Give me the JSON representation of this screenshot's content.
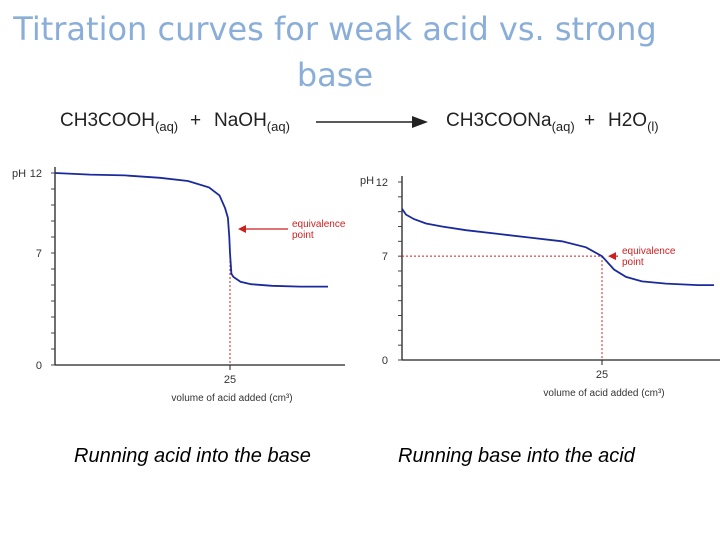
{
  "title": "Titration curves for weak acid vs. strong base",
  "equation": {
    "reactant1": {
      "main": "CH3COOH",
      "state": "(aq)"
    },
    "plus1": "+",
    "reactant2": {
      "main": "NaOH",
      "state": "(aq)"
    },
    "product1": {
      "main": "CH3COONa",
      "state": "(aq)"
    },
    "plus2": "+",
    "product2": {
      "main": "H2O",
      "state": "(l)"
    }
  },
  "colors": {
    "curve": "#1a2a9c",
    "marker": "#cc1f1f",
    "title": "#8aaed8"
  },
  "chart_data": [
    {
      "type": "line",
      "ylabel": "pH",
      "xlabel": "volume of acid added (cm³)",
      "xlim": [
        0,
        45
      ],
      "ylim": [
        0,
        12
      ],
      "yticks": [
        {
          "value": 0,
          "label": "0"
        },
        {
          "value": 7,
          "label": "7"
        },
        {
          "value": 12,
          "label": "12"
        }
      ],
      "xticks": [
        {
          "value": 25,
          "label": "25"
        }
      ],
      "x": [
        0,
        5,
        10,
        15,
        19,
        22,
        23.5,
        24.3,
        24.7,
        24.9,
        25,
        25.2,
        25.5,
        26.5,
        28,
        31,
        35,
        39
      ],
      "y": [
        12.0,
        11.9,
        11.85,
        11.7,
        11.5,
        11.1,
        10.6,
        9.8,
        9.2,
        8.0,
        7.0,
        5.7,
        5.5,
        5.2,
        5.05,
        4.95,
        4.9,
        4.9
      ],
      "annotation": {
        "text_line1": "equivalence",
        "text_line2": "point",
        "y": 8.5
      },
      "marker_x": 25,
      "caption": "Running acid into the base"
    },
    {
      "type": "line",
      "ylabel": "pH",
      "xlabel": "volume of acid added (cm³)",
      "xlim": [
        0,
        45
      ],
      "ylim": [
        0,
        12
      ],
      "yticks": [
        {
          "value": 0,
          "label": "0"
        },
        {
          "value": 7,
          "label": "7"
        },
        {
          "value": 12,
          "label": "12"
        }
      ],
      "xticks": [
        {
          "value": 25,
          "label": "25"
        }
      ],
      "x": [
        0,
        0.5,
        1.5,
        3,
        5,
        8,
        12,
        16,
        20,
        23,
        25,
        26.5,
        28,
        30,
        33,
        37,
        39
      ],
      "y": [
        10.2,
        9.8,
        9.5,
        9.2,
        9.0,
        8.75,
        8.5,
        8.25,
        8.0,
        7.6,
        7.0,
        6.1,
        5.6,
        5.3,
        5.15,
        5.05,
        5.05
      ],
      "annotation": {
        "text_line1": "equivalence",
        "text_line2": "point",
        "y": 7
      },
      "marker_x": 25,
      "hline_y": 7,
      "caption": "Running base into the acid"
    }
  ]
}
